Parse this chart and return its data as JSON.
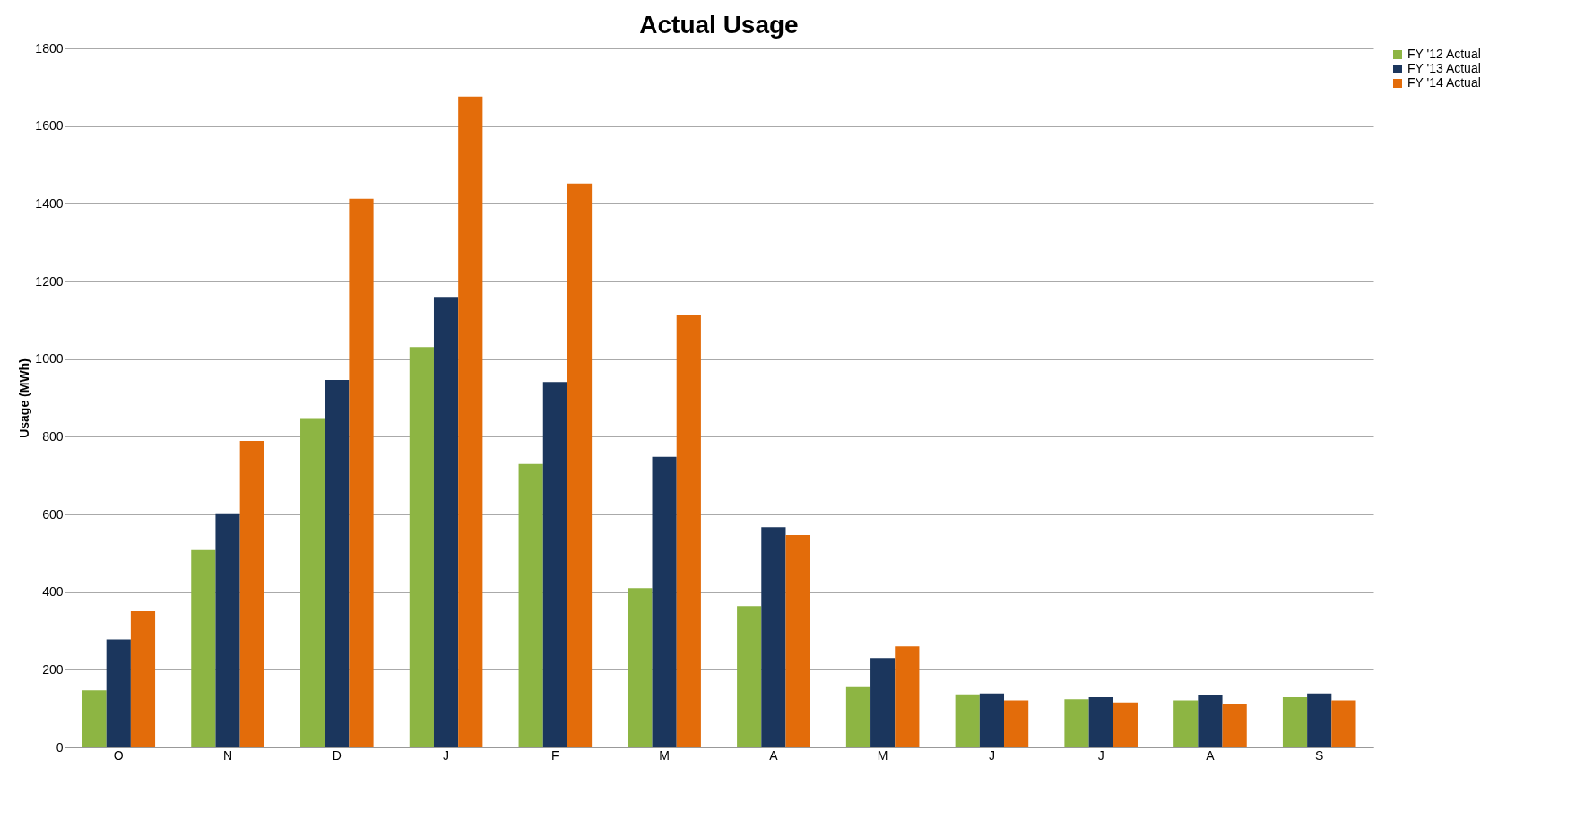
{
  "chart_data": {
    "type": "bar",
    "title": "Actual Usage",
    "ylabel": "Usage (MWh)",
    "categories": [
      "O",
      "N",
      "D",
      "J",
      "F",
      "M",
      "A",
      "M",
      "J",
      "J",
      "A",
      "S"
    ],
    "series": [
      {
        "name": "FY '12 Actual",
        "color": "#8db543",
        "values": [
          147,
          508,
          848,
          1031,
          730,
          410,
          364,
          155,
          137,
          124,
          121,
          129
        ]
      },
      {
        "name": "FY '13 Actual",
        "color": "#1b365d",
        "values": [
          278,
          603,
          946,
          1160,
          941,
          748,
          567,
          230,
          139,
          129,
          134,
          139
        ]
      },
      {
        "name": "FY '14 Actual",
        "color": "#e36c0a",
        "values": [
          351,
          789,
          1413,
          1676,
          1452,
          1114,
          547,
          260,
          121,
          116,
          111,
          121
        ]
      }
    ],
    "ylim": [
      0,
      1800
    ],
    "yticks": [
      0,
      200,
      400,
      600,
      800,
      1000,
      1200,
      1400,
      1600,
      1800
    ],
    "grid": "y",
    "legend": "right"
  }
}
